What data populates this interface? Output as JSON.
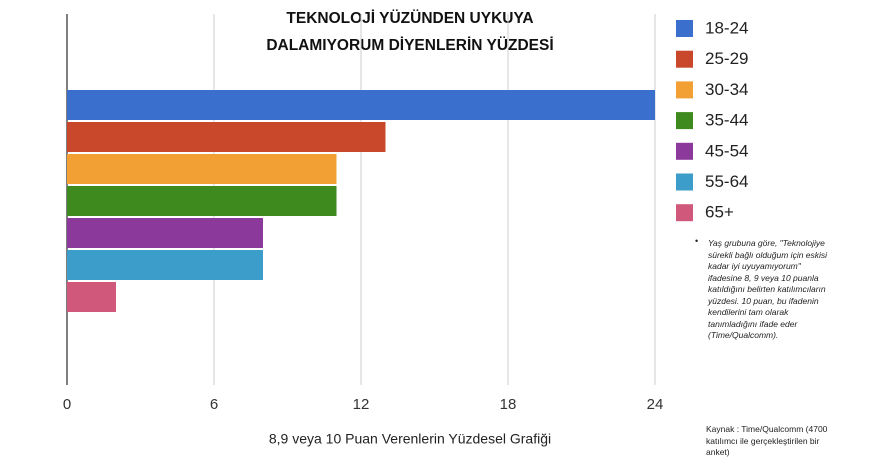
{
  "chart_data": {
    "type": "hbar",
    "title": [
      "TEKNOLOJİ YÜZÜNDEN UYKUYA",
      "DALAMIYORUM DİYENLERİN YÜZDESİ"
    ],
    "xlabel": "8,9 veya 10 Puan Verenlerin Yüzdesel Grafiği",
    "categories": [
      "18-24",
      "25-29",
      "30-34",
      "35-44",
      "45-54",
      "55-64",
      "65+"
    ],
    "values": [
      24,
      13,
      11,
      11,
      8,
      8,
      2
    ],
    "colors": [
      "#3a6fcd",
      "#c9482c",
      "#f2a033",
      "#3f8a1f",
      "#8b3a9b",
      "#3d9dca",
      "#d0587b"
    ],
    "xlim": [
      0,
      24
    ],
    "xticks": [
      0,
      6,
      12,
      18,
      24
    ],
    "grid": true,
    "note": "Yaş grubuna göre, \"Teknolojiye sürekli bağlı olduğum için eskisi kadar iyi uyuyamıyorum\" ifadesine 8, 9 veya 10 puanla katıldığını belirten katılımcıların yüzdesi. 10 puan, bu ifadenin kendilerini tam olarak tanımladığını ifade eder (Time/Qualcomm).",
    "source": "Kaynak : Time/Qualcomm (4700 katılımcı ile gerçekleştirilen bir anket)"
  }
}
